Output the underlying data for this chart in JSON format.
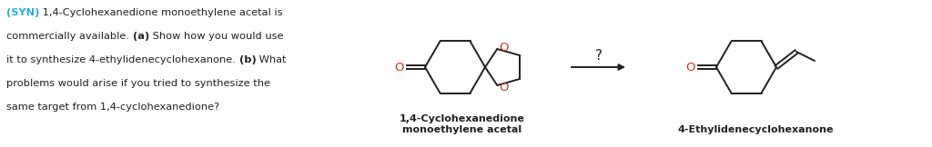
{
  "background_color": "#ffffff",
  "text_color": "#231f20",
  "syn_color": "#29abe2",
  "mol_color": "#231f20",
  "oxygen_color": "#c0392b",
  "label1": "1,4-Cyclohexanedione\nmonoethylene acetal",
  "label2": "4-Ethylidenecyclohexanone",
  "question_mark": "?",
  "figsize": [
    10.24,
    1.62
  ],
  "dpi": 100,
  "text_lines": [
    [
      [
        "(SYN)",
        "syn_bold"
      ],
      [
        " 1,4-Cyclohexanedione monoethylene acetal is",
        "normal"
      ]
    ],
    [
      [
        "commercially available. ",
        "normal"
      ],
      [
        "(a)",
        "bold"
      ],
      [
        " Show how you would use",
        "normal"
      ]
    ],
    [
      [
        "it to synthesize 4-ethylidenecyclohexanone. ",
        "normal"
      ],
      [
        "(b)",
        "bold"
      ],
      [
        " What",
        "normal"
      ]
    ],
    [
      [
        "problems would arise if you tried to synthesize the",
        "normal"
      ]
    ],
    [
      [
        "same target from 1,4-cyclohexanedione?",
        "normal"
      ]
    ]
  ]
}
